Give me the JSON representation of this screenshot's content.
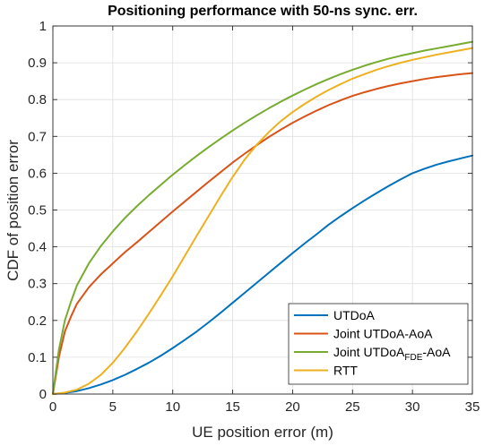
{
  "chart_data": {
    "type": "line",
    "title": "Positioning performance with 50-ns sync. err.",
    "xlabel": "UE position error (m)",
    "ylabel": "CDF of position error",
    "xlim": [
      0,
      35
    ],
    "ylim": [
      0,
      1
    ],
    "xticks": [
      "0",
      "5",
      "10",
      "15",
      "20",
      "25",
      "30",
      "35"
    ],
    "yticks": [
      "0",
      "0.1",
      "0.2",
      "0.3",
      "0.4",
      "0.5",
      "0.6",
      "0.7",
      "0.8",
      "0.9",
      "1"
    ],
    "grid": true,
    "legend_position": "bottom-right",
    "series": [
      {
        "name": "UTDoA",
        "color": "#0072BD",
        "x": [
          0,
          1,
          2,
          3,
          4,
          5,
          6,
          7,
          8,
          9,
          10,
          11,
          12,
          13,
          14,
          15,
          16,
          17,
          18,
          19,
          20,
          21,
          22,
          23,
          24,
          25,
          26,
          27,
          28,
          29,
          30,
          31,
          32,
          33,
          34,
          35
        ],
        "y": [
          0,
          0.003,
          0.008,
          0.016,
          0.026,
          0.038,
          0.052,
          0.068,
          0.085,
          0.104,
          0.125,
          0.147,
          0.17,
          0.195,
          0.221,
          0.248,
          0.275,
          0.302,
          0.329,
          0.356,
          0.383,
          0.409,
          0.434,
          0.46,
          0.483,
          0.505,
          0.526,
          0.546,
          0.565,
          0.583,
          0.6,
          0.612,
          0.623,
          0.632,
          0.64,
          0.648
        ]
      },
      {
        "name": "Joint UTDoA-AoA",
        "color": "#D95319",
        "x": [
          0,
          0.5,
          1,
          1.5,
          2,
          3,
          4,
          5,
          6,
          7,
          8,
          9,
          10,
          11,
          12,
          13,
          14,
          15,
          16,
          17,
          18,
          19,
          20,
          21,
          22,
          23,
          24,
          25,
          26,
          27,
          28,
          29,
          30,
          31,
          32,
          33,
          34,
          35
        ],
        "y": [
          0,
          0.1,
          0.17,
          0.21,
          0.245,
          0.29,
          0.325,
          0.355,
          0.385,
          0.412,
          0.44,
          0.468,
          0.496,
          0.523,
          0.55,
          0.577,
          0.603,
          0.629,
          0.653,
          0.676,
          0.698,
          0.718,
          0.737,
          0.754,
          0.77,
          0.785,
          0.798,
          0.81,
          0.82,
          0.829,
          0.837,
          0.844,
          0.85,
          0.856,
          0.861,
          0.865,
          0.869,
          0.872
        ]
      },
      {
        "name": "Joint UTDoA",
        "name_sub": "FDE",
        "name_suffix": "-AoA",
        "color": "#77AC30",
        "x": [
          0,
          0.5,
          1,
          1.5,
          2,
          3,
          4,
          5,
          6,
          7,
          8,
          9,
          10,
          11,
          12,
          13,
          14,
          15,
          16,
          17,
          18,
          19,
          20,
          21,
          22,
          23,
          24,
          25,
          26,
          27,
          28,
          29,
          30,
          31,
          32,
          33,
          34,
          35
        ],
        "y": [
          0,
          0.12,
          0.2,
          0.25,
          0.295,
          0.355,
          0.402,
          0.442,
          0.478,
          0.51,
          0.54,
          0.568,
          0.596,
          0.622,
          0.647,
          0.671,
          0.694,
          0.716,
          0.737,
          0.757,
          0.776,
          0.794,
          0.811,
          0.827,
          0.842,
          0.856,
          0.869,
          0.881,
          0.892,
          0.902,
          0.911,
          0.919,
          0.926,
          0.933,
          0.939,
          0.945,
          0.951,
          0.957
        ]
      },
      {
        "name": "RTT",
        "color": "#EDB120",
        "x": [
          0,
          1,
          2,
          3,
          4,
          5,
          6,
          7,
          8,
          9,
          10,
          11,
          12,
          13,
          14,
          15,
          16,
          17,
          18,
          19,
          20,
          21,
          22,
          23,
          24,
          25,
          26,
          27,
          28,
          29,
          30,
          31,
          32,
          33,
          34,
          35
        ],
        "y": [
          0,
          0.004,
          0.012,
          0.028,
          0.052,
          0.085,
          0.125,
          0.17,
          0.218,
          0.268,
          0.32,
          0.375,
          0.43,
          0.484,
          0.538,
          0.59,
          0.637,
          0.677,
          0.711,
          0.741,
          0.766,
          0.788,
          0.808,
          0.826,
          0.842,
          0.857,
          0.869,
          0.881,
          0.891,
          0.9,
          0.908,
          0.915,
          0.922,
          0.928,
          0.934,
          0.94
        ]
      }
    ]
  }
}
